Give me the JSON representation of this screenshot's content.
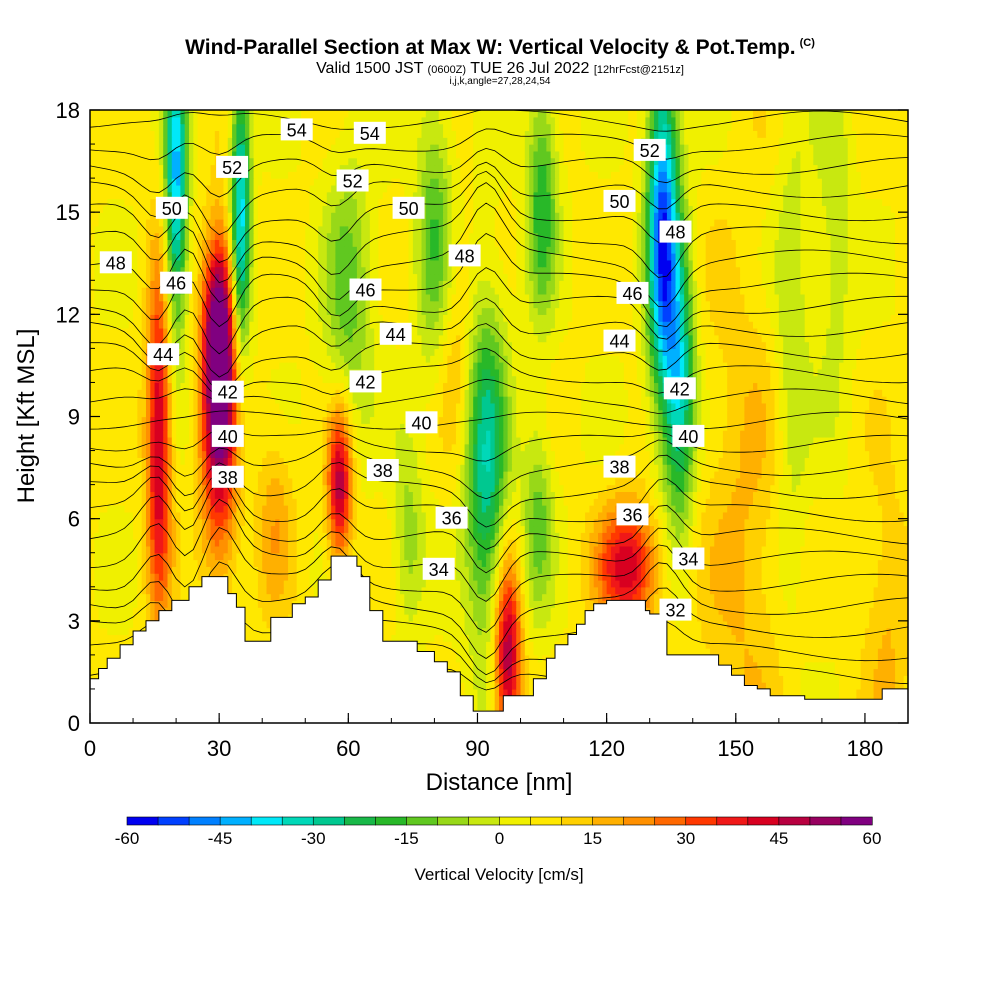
{
  "header": {
    "title": "Wind-Parallel Section at Max W: Vertical Velocity & Pot.Temp.",
    "title_mark": "(C)",
    "valid_prefix": "Valid 1500 JST",
    "valid_utc": "(0600Z)",
    "valid_date": "TUE 26 Jul 2022",
    "forecast": "[12hrFcst@2151z]",
    "indices": "i,j,k,angle=27,28,24,54"
  },
  "chart_data": {
    "type": "heatmap",
    "xlabel": "Distance [nm]",
    "ylabel": "Height [Kft MSL]",
    "xlim": [
      0,
      190
    ],
    "ylim": [
      0,
      18
    ],
    "x_ticks": [
      "0",
      "30",
      "60",
      "90",
      "120",
      "150",
      "180"
    ],
    "y_ticks": [
      "0",
      "3",
      "6",
      "9",
      "12",
      "15",
      "18"
    ],
    "colorbar": {
      "label": "Vertical Velocity [cm/s]",
      "ticks": [
        "-60",
        "-45",
        "-30",
        "-15",
        "0",
        "15",
        "30",
        "45",
        "60"
      ],
      "range": [
        -60,
        60
      ],
      "colors": [
        "#0000f0",
        "#0040ff",
        "#0080ff",
        "#00b0ff",
        "#00e8f8",
        "#00d8b8",
        "#00c890",
        "#18b848",
        "#28b828",
        "#60c820",
        "#98d818",
        "#c8e810",
        "#f0f000",
        "#ffe800",
        "#ffd000",
        "#ffb000",
        "#ff9000",
        "#ff6800",
        "#ff3800",
        "#f01818",
        "#d80020",
        "#b80040",
        "#980060",
        "#800080"
      ]
    },
    "terrain_kft": [
      [
        0,
        1.3
      ],
      [
        2,
        1.3
      ],
      [
        2,
        1.6
      ],
      [
        4,
        1.6
      ],
      [
        4,
        1.9
      ],
      [
        7,
        1.9
      ],
      [
        7,
        2.3
      ],
      [
        10,
        2.3
      ],
      [
        10,
        2.7
      ],
      [
        13,
        2.7
      ],
      [
        13,
        3.0
      ],
      [
        16,
        3.0
      ],
      [
        16,
        3.3
      ],
      [
        19,
        3.3
      ],
      [
        19,
        3.6
      ],
      [
        23,
        3.6
      ],
      [
        23,
        4.0
      ],
      [
        26,
        4.0
      ],
      [
        26,
        4.3
      ],
      [
        32,
        4.3
      ],
      [
        32,
        3.8
      ],
      [
        34,
        3.8
      ],
      [
        34,
        3.4
      ],
      [
        36,
        3.4
      ],
      [
        36,
        2.4
      ],
      [
        42,
        2.4
      ],
      [
        42,
        3.1
      ],
      [
        47,
        3.1
      ],
      [
        47,
        3.5
      ],
      [
        50,
        3.5
      ],
      [
        50,
        3.7
      ],
      [
        53,
        3.7
      ],
      [
        53,
        4.2
      ],
      [
        56,
        4.2
      ],
      [
        56,
        4.9
      ],
      [
        62,
        4.9
      ],
      [
        62,
        4.6
      ],
      [
        63,
        4.6
      ],
      [
        63,
        4.3
      ],
      [
        65,
        4.3
      ],
      [
        65,
        3.3
      ],
      [
        68,
        3.3
      ],
      [
        68,
        2.4
      ],
      [
        76,
        2.4
      ],
      [
        76,
        2.1
      ],
      [
        80,
        2.1
      ],
      [
        80,
        1.8
      ],
      [
        83,
        1.8
      ],
      [
        83,
        1.5
      ],
      [
        86,
        1.5
      ],
      [
        86,
        0.8
      ],
      [
        89,
        0.8
      ],
      [
        89,
        0.35
      ],
      [
        93,
        0.35
      ],
      [
        93,
        0.35
      ],
      [
        96,
        0.35
      ],
      [
        96,
        0.8
      ],
      [
        99,
        0.8
      ],
      [
        99,
        0.8
      ],
      [
        103,
        0.8
      ],
      [
        103,
        1.3
      ],
      [
        106,
        1.3
      ],
      [
        106,
        1.9
      ],
      [
        108,
        1.9
      ],
      [
        108,
        2.3
      ],
      [
        111,
        2.3
      ],
      [
        111,
        2.6
      ],
      [
        113,
        2.6
      ],
      [
        113,
        2.9
      ],
      [
        115,
        2.9
      ],
      [
        115,
        3.3
      ],
      [
        117,
        3.3
      ],
      [
        117,
        3.5
      ],
      [
        120,
        3.5
      ],
      [
        120,
        3.6
      ],
      [
        129,
        3.6
      ],
      [
        129,
        3.3
      ],
      [
        130,
        3.3
      ],
      [
        130,
        3.2
      ],
      [
        134,
        3.2
      ],
      [
        134,
        2.0
      ],
      [
        146,
        2.0
      ],
      [
        146,
        1.7
      ],
      [
        149,
        1.7
      ],
      [
        149,
        1.4
      ],
      [
        152,
        1.4
      ],
      [
        152,
        1.1
      ],
      [
        155,
        1.1
      ],
      [
        155,
        1.0
      ],
      [
        158,
        1.0
      ],
      [
        158,
        0.8
      ],
      [
        166,
        0.8
      ],
      [
        166,
        0.7
      ],
      [
        175,
        0.7
      ],
      [
        175,
        0.7
      ],
      [
        184,
        0.7
      ],
      [
        184,
        1.0
      ],
      [
        190,
        1.0
      ]
    ],
    "velocity_features": [
      {
        "x": 16,
        "y": 8.3,
        "sx": 2.0,
        "sy": 3.5,
        "w": 42
      },
      {
        "x": 30,
        "y": 11.5,
        "sx": 2.5,
        "sy": 2.0,
        "w": 62
      },
      {
        "x": 30,
        "y": 7.8,
        "sx": 3.0,
        "sy": 2.5,
        "w": 36
      },
      {
        "x": 58,
        "y": 7.0,
        "sx": 2.0,
        "sy": 1.6,
        "w": 44
      },
      {
        "x": 97,
        "y": 2.0,
        "sx": 2.2,
        "sy": 2.0,
        "w": 46
      },
      {
        "x": 125,
        "y": 4.6,
        "sx": 5.0,
        "sy": 1.3,
        "w": 38
      },
      {
        "x": 85,
        "y": 11.0,
        "sx": 3.0,
        "sy": 2.5,
        "w": 10
      },
      {
        "x": 152,
        "y": 5.0,
        "sx": 7.0,
        "sy": 6.0,
        "w": 10
      },
      {
        "x": 185,
        "y": 3.0,
        "sx": 4.0,
        "sy": 3.0,
        "w": 10
      },
      {
        "x": 43,
        "y": 6.0,
        "sx": 3.0,
        "sy": 2.0,
        "w": 12
      },
      {
        "x": 20,
        "y": 15.8,
        "sx": 1.8,
        "sy": 3.0,
        "w": -48
      },
      {
        "x": 35,
        "y": 15.0,
        "sx": 1.6,
        "sy": 3.0,
        "w": -44
      },
      {
        "x": 133,
        "y": 14.5,
        "sx": 2.5,
        "sy": 3.5,
        "w": -58
      },
      {
        "x": 137,
        "y": 10.0,
        "sx": 2.5,
        "sy": 3.0,
        "w": -38
      },
      {
        "x": 92,
        "y": 7.5,
        "sx": 3.5,
        "sy": 3.5,
        "w": -35
      },
      {
        "x": 105,
        "y": 15.5,
        "sx": 2.5,
        "sy": 2.5,
        "w": -25
      },
      {
        "x": 80,
        "y": 14.5,
        "sx": 3.0,
        "sy": 3.0,
        "w": -20
      },
      {
        "x": 60,
        "y": 12.5,
        "sx": 4.0,
        "sy": 3.0,
        "w": -18
      },
      {
        "x": 104,
        "y": 6.0,
        "sx": 2.5,
        "sy": 2.0,
        "w": -18
      },
      {
        "x": 163,
        "y": 11.0,
        "sx": 3.0,
        "sy": 5.0,
        "w": -12
      },
      {
        "x": 173,
        "y": 14.5,
        "sx": 3.0,
        "sy": 4.0,
        "w": -10
      },
      {
        "x": 74,
        "y": 5.5,
        "sx": 2.5,
        "sy": 2.0,
        "w": -14
      }
    ],
    "theta_labels": [
      {
        "text": "54",
        "x": 48,
        "y": 17.4
      },
      {
        "text": "54",
        "x": 65,
        "y": 17.3
      },
      {
        "text": "52",
        "x": 33,
        "y": 16.3
      },
      {
        "text": "52",
        "x": 61,
        "y": 15.9
      },
      {
        "text": "52",
        "x": 130,
        "y": 16.8
      },
      {
        "text": "50",
        "x": 19,
        "y": 15.1
      },
      {
        "text": "50",
        "x": 74,
        "y": 15.1
      },
      {
        "text": "50",
        "x": 123,
        "y": 15.3
      },
      {
        "text": "48",
        "x": 6,
        "y": 13.5
      },
      {
        "text": "48",
        "x": 87,
        "y": 13.7
      },
      {
        "text": "48",
        "x": 136,
        "y": 14.4
      },
      {
        "text": "46",
        "x": 20,
        "y": 12.9
      },
      {
        "text": "46",
        "x": 64,
        "y": 12.7
      },
      {
        "text": "46",
        "x": 126,
        "y": 12.6
      },
      {
        "text": "44",
        "x": 17,
        "y": 10.8
      },
      {
        "text": "44",
        "x": 71,
        "y": 11.4
      },
      {
        "text": "44",
        "x": 123,
        "y": 11.2
      },
      {
        "text": "42",
        "x": 32,
        "y": 9.7
      },
      {
        "text": "42",
        "x": 64,
        "y": 10.0
      },
      {
        "text": "42",
        "x": 137,
        "y": 9.8
      },
      {
        "text": "40",
        "x": 32,
        "y": 8.4
      },
      {
        "text": "40",
        "x": 77,
        "y": 8.8
      },
      {
        "text": "40",
        "x": 139,
        "y": 8.4
      },
      {
        "text": "38",
        "x": 32,
        "y": 7.2
      },
      {
        "text": "38",
        "x": 68,
        "y": 7.4
      },
      {
        "text": "38",
        "x": 123,
        "y": 7.5
      },
      {
        "text": "36",
        "x": 84,
        "y": 6.0
      },
      {
        "text": "36",
        "x": 126,
        "y": 6.1
      },
      {
        "text": "34",
        "x": 81,
        "y": 4.5
      },
      {
        "text": "34",
        "x": 139,
        "y": 4.8
      },
      {
        "text": "32",
        "x": 136,
        "y": 3.3
      }
    ]
  }
}
